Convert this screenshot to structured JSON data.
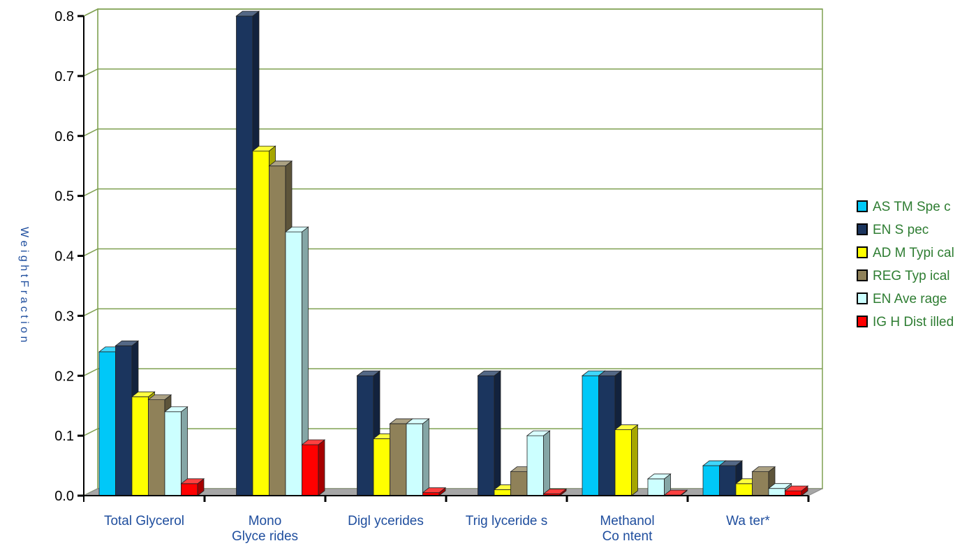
{
  "chart_data": {
    "type": "bar",
    "title": "",
    "xlabel": "",
    "ylabel": "W e i g h t  F r a c t i o n",
    "ylim": [
      0,
      0.8
    ],
    "yticks": [
      "0.0",
      "0.1",
      "0.2",
      "0.3",
      "0.4",
      "0.5",
      "0.6",
      "0.7",
      "0.8"
    ],
    "grid": true,
    "legend_position": "right",
    "categories": [
      [
        "Total Glycerol"
      ],
      [
        "Mono",
        "Glyce rides"
      ],
      [
        "Digl ycerides"
      ],
      [
        "Trig lyceride s"
      ],
      [
        "Methanol",
        "Co ntent"
      ],
      [
        "Wa ter*"
      ]
    ],
    "series": [
      {
        "name": "AS TM Spe c",
        "color": "#00c8f8",
        "values": [
          0.24,
          0,
          0,
          0,
          0.2,
          0.05
        ]
      },
      {
        "name": "EN S pec",
        "color": "#1b355e",
        "values": [
          0.25,
          0.8,
          0.2,
          0.2,
          0.2,
          0.05
        ]
      },
      {
        "name": "AD M Typi cal",
        "color": "#ffff00",
        "values": [
          0.165,
          0.575,
          0.095,
          0.01,
          0.11,
          0.02
        ]
      },
      {
        "name": "REG Typ ical",
        "color": "#8f8159",
        "values": [
          0.16,
          0.55,
          0.12,
          0.04,
          0,
          0.04
        ]
      },
      {
        "name": "EN Ave rage",
        "color": "#ccffff",
        "values": [
          0.14,
          0.44,
          0.12,
          0.1,
          0.028,
          0.012
        ]
      },
      {
        "name": "IG H Dist illed",
        "color": "#ff0000",
        "values": [
          0.02,
          0.085,
          0.005,
          0.003,
          0.001,
          0.008
        ]
      }
    ]
  },
  "colors": {
    "grid": "#7fa050",
    "floor": "#a6a6a6",
    "axis": "#000000"
  }
}
